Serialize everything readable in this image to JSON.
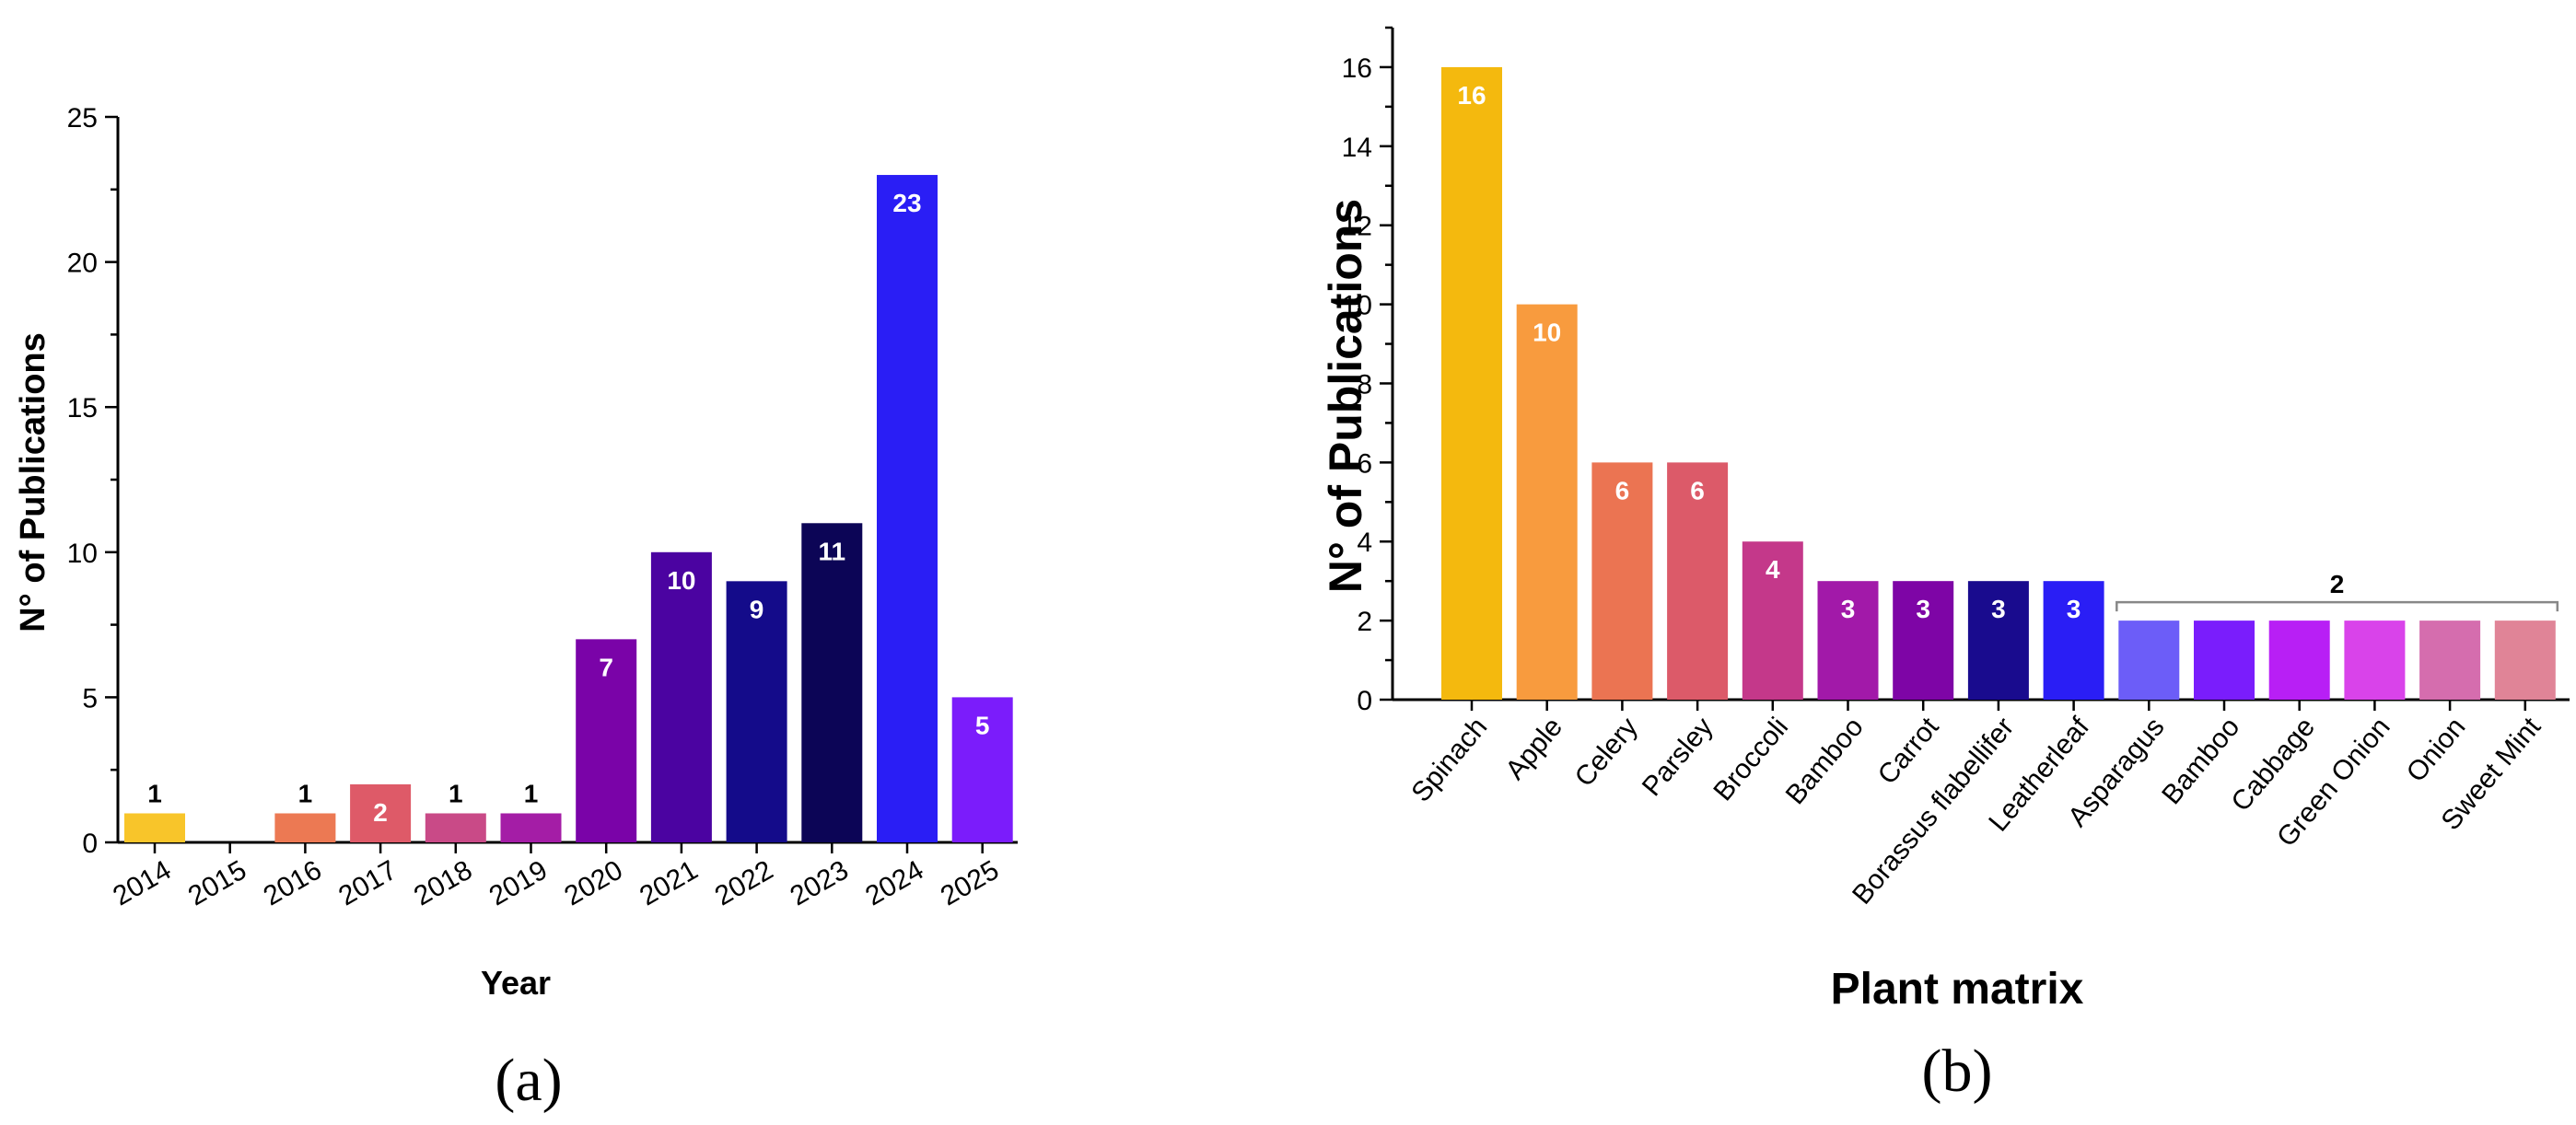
{
  "chart_data": [
    {
      "type": "bar",
      "panel": "(a)",
      "xlabel": "Year",
      "ylabel": "N° of Publications",
      "ylim": [
        0,
        25
      ],
      "yticks": [
        0,
        5,
        10,
        15,
        20,
        25
      ],
      "categories": [
        "2014",
        "2015",
        "2016",
        "2017",
        "2018",
        "2019",
        "2020",
        "2021",
        "2022",
        "2023",
        "2024",
        "2025"
      ],
      "values": [
        1,
        0,
        1,
        2,
        1,
        1,
        7,
        10,
        9,
        11,
        23,
        5
      ],
      "value_labels": [
        "1",
        "",
        "1",
        "2",
        "1",
        "1",
        "7",
        "10",
        "9",
        "11",
        "23",
        "5"
      ],
      "colors": [
        "#F8C52A",
        "#F3A53C",
        "#EC7953",
        "#DE5A68",
        "#C94A87",
        "#A41DA6",
        "#7A03A8",
        "#4B03A1",
        "#140B8A",
        "#0C0556",
        "#2A1EF5",
        "#7B1CFB"
      ]
    },
    {
      "type": "bar",
      "panel": "(b)",
      "xlabel": "Plant matrix",
      "ylabel": "N° of Publications",
      "ylim": [
        0,
        17
      ],
      "yticks": [
        0,
        2,
        4,
        6,
        8,
        10,
        12,
        14,
        16
      ],
      "categories": [
        "Spinach",
        "Apple",
        "Celery",
        "Parsley",
        "Broccoli",
        "Bamboo",
        "Carrot",
        "Borassus flabellifer",
        "Leatherleaf",
        "Asparagus",
        "Bamboo",
        "Cabbage",
        "Green Onion",
        "Onion",
        "Sweet Mint"
      ],
      "values": [
        16,
        10,
        6,
        6,
        4,
        3,
        3,
        3,
        3,
        2,
        2,
        2,
        2,
        2,
        2
      ],
      "value_labels": [
        "16",
        "10",
        "6",
        "6",
        "4",
        "3",
        "3",
        "3",
        "3",
        "",
        "",
        "",
        "",
        "",
        ""
      ],
      "group_annotation": {
        "label": "2",
        "from_index": 9,
        "to_index": 14
      },
      "colors": [
        "#F4B90E",
        "#F89B3E",
        "#EB7452",
        "#DC5A69",
        "#C4388A",
        "#A219A9",
        "#7E05A6",
        "#190B8E",
        "#2A1EF5",
        "#6C5DF8",
        "#7A1DFC",
        "#B81FF5",
        "#D943EA",
        "#D56DAE",
        "#E08497"
      ]
    }
  ]
}
